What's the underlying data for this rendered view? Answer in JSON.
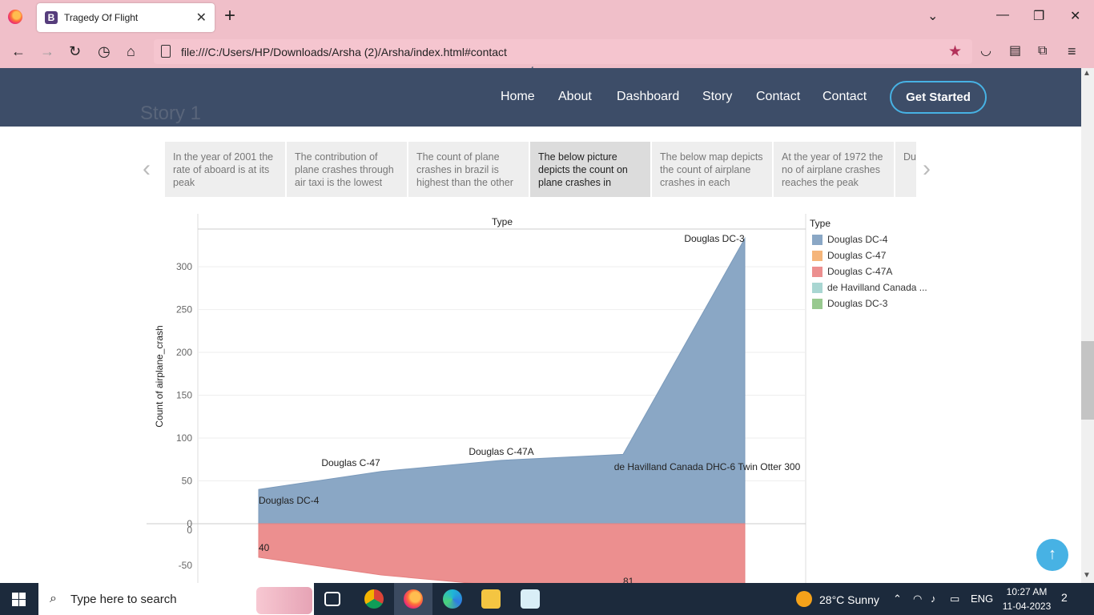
{
  "browser": {
    "tab_title": "Tragedy Of Flight",
    "tab_icon_letter": "B",
    "tab_close": "✕",
    "new_tab": "+",
    "url": "file:///C:/Users/HP/Downloads/Arsha (2)/Arsha/index.html#contact"
  },
  "site": {
    "background_heading_small": "story",
    "background_heading": "Story 1",
    "nav": [
      "Home",
      "About",
      "Dashboard",
      "Story",
      "Contact",
      "Contact"
    ],
    "cta": "Get Started",
    "back_to_top": "↑"
  },
  "carousel": {
    "prev": "‹",
    "next": "›",
    "cards": [
      "In the year of 2001 the rate of aboard is at its peak",
      "The contribution of plane crashes through air taxi is the lowest",
      "The count of plane crashes in brazil is highest than the other",
      "The below picture depicts the count on plane crashes in",
      "The below map depicts the count of airplane crashes in each",
      "At the year of 1972 the no of airplane crashes reaches the peak",
      "Du De cas"
    ],
    "active_index": 3
  },
  "chart_data": {
    "type": "area",
    "title": "Type",
    "ylabel": "Count of airplane_crash",
    "ylim": [
      0,
      330
    ],
    "yticks": [
      0,
      50,
      100,
      150,
      200,
      250,
      300
    ],
    "lower_yticks": [
      0,
      -50
    ],
    "categories": [
      "Douglas DC-4",
      "Douglas C-47",
      "Douglas C-47A",
      "de Havilland Canada DHC-6 Twin Otter 300",
      "Douglas DC-3"
    ],
    "values": [
      40,
      61,
      74,
      81,
      333
    ],
    "lower_labels": [
      "40",
      "81"
    ],
    "legend_title": "Type",
    "legend": [
      {
        "name": "Douglas DC-4",
        "color": "#8aa7c5"
      },
      {
        "name": "Douglas C-47",
        "color": "#f5b57a"
      },
      {
        "name": "Douglas C-47A",
        "color": "#ec8f8f"
      },
      {
        "name": "de Havilland Canada ...",
        "color": "#a9d6d2"
      },
      {
        "name": "Douglas DC-3",
        "color": "#98c98f"
      }
    ]
  },
  "taskbar": {
    "search_placeholder": "Type here to search",
    "weather": "28°C  Sunny",
    "language": "ENG",
    "time": "10:27 AM",
    "date": "11-04-2023",
    "notifications": "2"
  }
}
